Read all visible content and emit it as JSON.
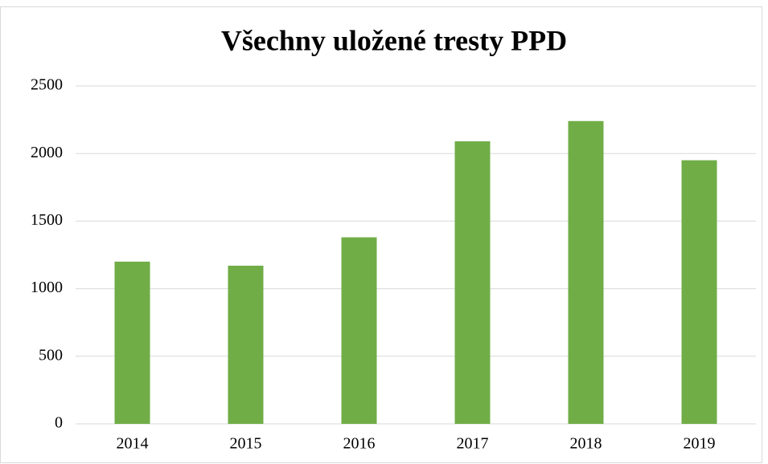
{
  "chart_data": {
    "type": "bar",
    "title": "Všechny uložené tresty PPD",
    "categories": [
      "2014",
      "2015",
      "2016",
      "2017",
      "2018",
      "2019"
    ],
    "values": [
      1200,
      1170,
      1380,
      2090,
      2240,
      1950
    ],
    "color": "#70ad47",
    "ylim": [
      0,
      2500
    ],
    "yticks": [
      0,
      500,
      1000,
      1500,
      2000,
      2500
    ],
    "grid": true
  }
}
